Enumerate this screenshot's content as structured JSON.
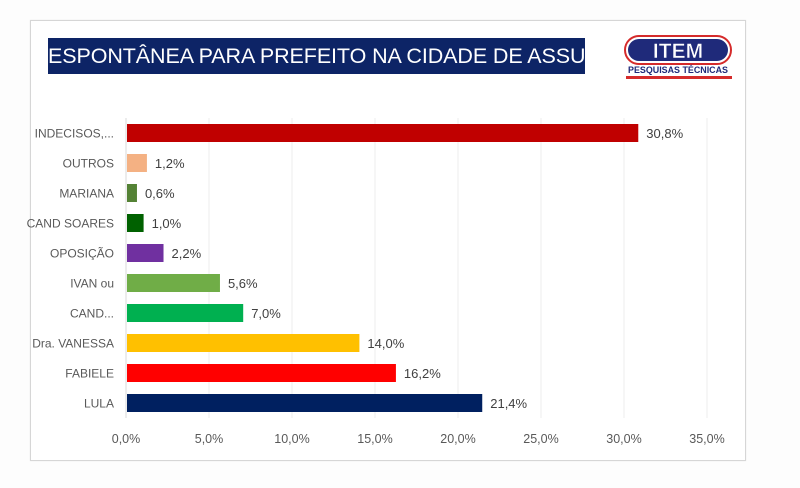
{
  "logo": {
    "brand": "ITEM",
    "tagline": "PESQUISAS TÉCNICAS",
    "colors": {
      "primary": "#1f2a7a",
      "accent": "#d52b2b"
    }
  },
  "chart_data": {
    "type": "bar",
    "orientation": "horizontal",
    "title": "ESPONTÂNEA PARA PREFEITO NA CIDADE DE ASSU/RN",
    "xlabel": "",
    "ylabel": "",
    "xlim": [
      0,
      35
    ],
    "x_ticks": [
      0,
      5,
      10,
      15,
      20,
      25,
      30,
      35
    ],
    "x_tick_labels": [
      "0,0%",
      "5,0%",
      "10,0%",
      "15,0%",
      "20,0%",
      "25,0%",
      "30,0%",
      "35,0%"
    ],
    "grid": true,
    "legend": "none",
    "categories": [
      "INDECISOS,...",
      "OUTROS",
      "MARIANA",
      "CAND SOARES",
      "OPOSIÇÃO",
      "IVAN ou",
      "CAND...",
      "Dra. VANESSA",
      "FABIELE",
      "LULA"
    ],
    "values": [
      30.8,
      1.2,
      0.6,
      1.0,
      2.2,
      5.6,
      7.0,
      14.0,
      16.2,
      21.4
    ],
    "value_labels": [
      "30,8%",
      "1,2%",
      "0,6%",
      "1,0%",
      "2,2%",
      "5,6%",
      "7,0%",
      "14,0%",
      "16,2%",
      "21,4%"
    ],
    "colors": [
      "#c00000",
      "#f4b183",
      "#548235",
      "#006100",
      "#7030a0",
      "#70ad47",
      "#00b050",
      "#ffc000",
      "#ff0000",
      "#002060"
    ]
  }
}
